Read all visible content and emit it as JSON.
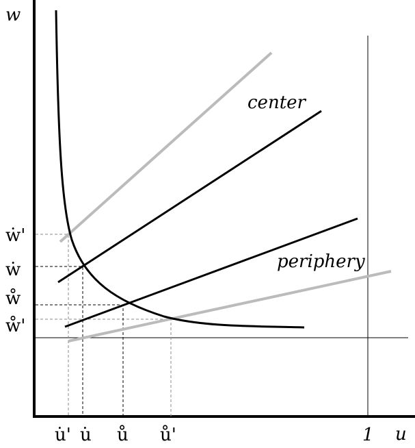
{
  "axes": {
    "y_label": "w",
    "x_label": "u"
  },
  "curve_labels": {
    "center": "center",
    "periphery": "periphery"
  },
  "y_ticks": [
    "ẇ'",
    "ẇ",
    "ẘ",
    "ẘ'"
  ],
  "x_ticks": [
    "u̇'",
    "u̇",
    "ů",
    "ů'",
    "1"
  ]
}
